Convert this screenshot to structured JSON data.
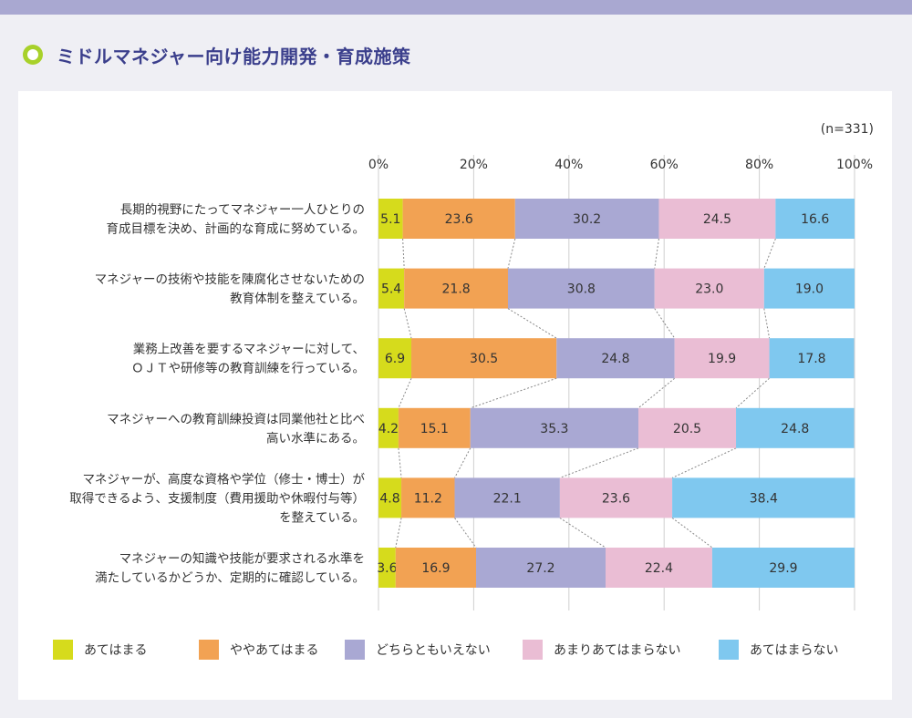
{
  "title": "ミドルマネジャー向け能力開発・育成施策",
  "colors": {
    "topbar": "#a9a8d1",
    "title": "#3b3f8c",
    "icon_ring": "#a8d12a",
    "grid": "#cfcfcf",
    "connector": "#888888"
  },
  "chart_data": {
    "type": "bar",
    "orientation": "horizontal",
    "stacked": true,
    "note": "(n=331)",
    "xlim": [
      0,
      100
    ],
    "xticks": [
      "0%",
      "20%",
      "40%",
      "60%",
      "80%",
      "100%"
    ],
    "grid": true,
    "legend_position": "bottom",
    "categories": [
      [
        "長期的視野にたってマネジャー一人ひとりの",
        "育成目標を決め、計画的な育成に努めている。"
      ],
      [
        "マネジャーの技術や技能を陳腐化させないための",
        "教育体制を整えている。"
      ],
      [
        "業務上改善を要するマネジャーに対して、",
        "ＯＪＴや研修等の教育訓練を行っている。"
      ],
      [
        "マネジャーへの教育訓練投資は同業他社と比べ",
        "高い水準にある。"
      ],
      [
        "マネジャーが、高度な資格や学位（修士・博士）が",
        "取得できるよう、支援制度（費用援助や休暇付与等）",
        "を整えている。"
      ],
      [
        "マネジャーの知識や技能が要求される水準を",
        "満たしているかどうか、定期的に確認している。"
      ]
    ],
    "series": [
      {
        "name": "あてはまる",
        "color": "#d6db1c",
        "values": [
          5.1,
          5.4,
          6.9,
          4.2,
          4.8,
          3.6
        ],
        "labels": [
          "5.1",
          "5.4",
          "6.9",
          "4.2",
          "4.8",
          "3.6"
        ]
      },
      {
        "name": "ややあてはまる",
        "color": "#f2a253",
        "values": [
          23.6,
          21.8,
          30.5,
          15.1,
          11.2,
          16.9
        ],
        "labels": [
          "23.6",
          "21.8",
          "30.5",
          "15.1",
          "11.2",
          "16.9"
        ]
      },
      {
        "name": "どちらともいえない",
        "color": "#a9a8d3",
        "values": [
          30.2,
          30.8,
          24.8,
          35.3,
          22.1,
          27.2
        ],
        "labels": [
          "30.2",
          "30.8",
          "24.8",
          "35.3",
          "22.1",
          "27.2"
        ]
      },
      {
        "name": "あまりあてはまらない",
        "color": "#eabdd4",
        "values": [
          24.5,
          23.0,
          19.9,
          20.5,
          23.6,
          22.4
        ],
        "labels": [
          "24.5",
          "23.0",
          "19.9",
          "20.5",
          "23.6",
          "22.4"
        ]
      },
      {
        "name": "あてはまらない",
        "color": "#7fc8ef",
        "values": [
          16.6,
          19.0,
          17.8,
          24.8,
          38.4,
          29.9
        ],
        "labels": [
          "16.6",
          "19.0",
          "17.8",
          "24.8",
          "38.4",
          "29.9"
        ]
      }
    ]
  }
}
